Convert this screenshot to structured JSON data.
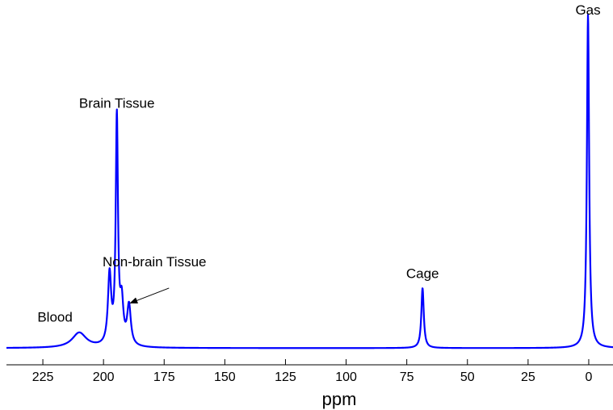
{
  "chart_data": {
    "type": "line",
    "title": "",
    "xlabel": "ppm",
    "ylabel": "",
    "x_reversed": true,
    "xlim": [
      240,
      -10
    ],
    "ylim": [
      -0.05,
      1.0
    ],
    "x_ticks": [
      225,
      200,
      175,
      150,
      125,
      100,
      75,
      50,
      25,
      0
    ],
    "y_ticks": [],
    "grid": false,
    "legend": "none",
    "line_color": "#0000ff",
    "baseline": 0.0,
    "peaks": [
      {
        "name": "Blood",
        "position_ppm": 210,
        "amplitude": 0.045,
        "width": 3.5
      },
      {
        "name": "Non-brain Tissue",
        "position_ppm": 189.5,
        "amplitude": 0.12,
        "width": 0.9
      },
      {
        "name": "Brain Tissue shoulder",
        "position_ppm": 197.5,
        "amplitude": 0.21,
        "width": 0.8
      },
      {
        "name": "Brain Tissue",
        "position_ppm": 194.5,
        "amplitude": 0.68,
        "width": 0.55
      },
      {
        "name": "Brain Tissue side",
        "position_ppm": 192.5,
        "amplitude": 0.12,
        "width": 0.8
      },
      {
        "name": "Cage",
        "position_ppm": 68.5,
        "amplitude": 0.18,
        "width": 0.6
      },
      {
        "name": "Gas",
        "position_ppm": 0.3,
        "amplitude": 1.0,
        "width": 0.55
      }
    ],
    "annotations": [
      {
        "text": "Gas",
        "x": 0.3,
        "y": 1.0
      },
      {
        "text": "Brain Tissue",
        "x": 194.5,
        "y": 0.72
      },
      {
        "text": "Non-brain Tissue",
        "x": 179,
        "y": 0.245
      },
      {
        "text": "Cage",
        "x": 68.5,
        "y": 0.21
      },
      {
        "text": "Blood",
        "x": 220,
        "y": 0.08
      }
    ],
    "arrow": {
      "from": [
        173,
        0.18
      ],
      "to": [
        189,
        0.135
      ]
    }
  }
}
